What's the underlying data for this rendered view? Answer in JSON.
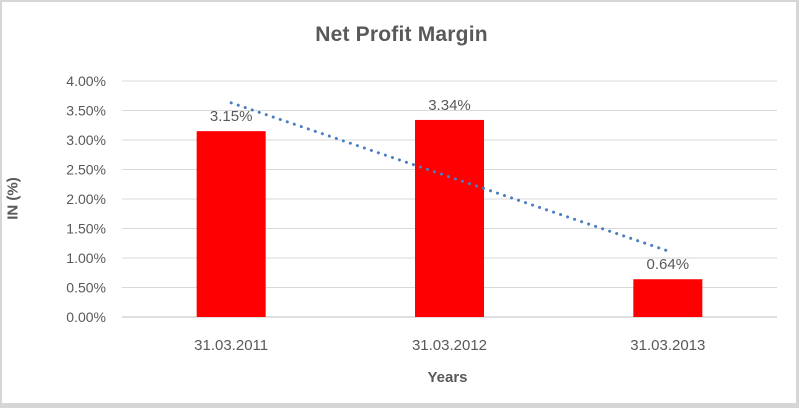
{
  "window": {
    "background_color": "#ffffff",
    "border_color": "#d6d6d6"
  },
  "chart_data": {
    "type": "bar",
    "title": "Net Profit Margin",
    "xlabel": "Years",
    "ylabel": "IN (%)",
    "categories": [
      "31.03.2011",
      "31.03.2012",
      "31.03.2013"
    ],
    "series": [
      {
        "name": "Net Profit Margin",
        "values": [
          3.15,
          3.34,
          0.64
        ],
        "color": "#ff0000"
      }
    ],
    "data_labels": [
      "3.15%",
      "3.34%",
      "0.64%"
    ],
    "y_ticks": [
      "4.00%",
      "3.50%",
      "3.00%",
      "2.50%",
      "2.00%",
      "1.50%",
      "1.00%",
      "0.50%",
      "0.00%"
    ],
    "ylim": [
      0,
      4
    ],
    "y_step": 0.5,
    "grid": true,
    "legend": "none",
    "trendline": {
      "type": "linear",
      "style": "dotted",
      "color": "#4a7ec0",
      "start_value": 3.63,
      "end_value": 1.12
    },
    "colors": {
      "text": "#595959",
      "gridline": "#d9d9d9",
      "axis_line": "#bfbfbf"
    }
  }
}
